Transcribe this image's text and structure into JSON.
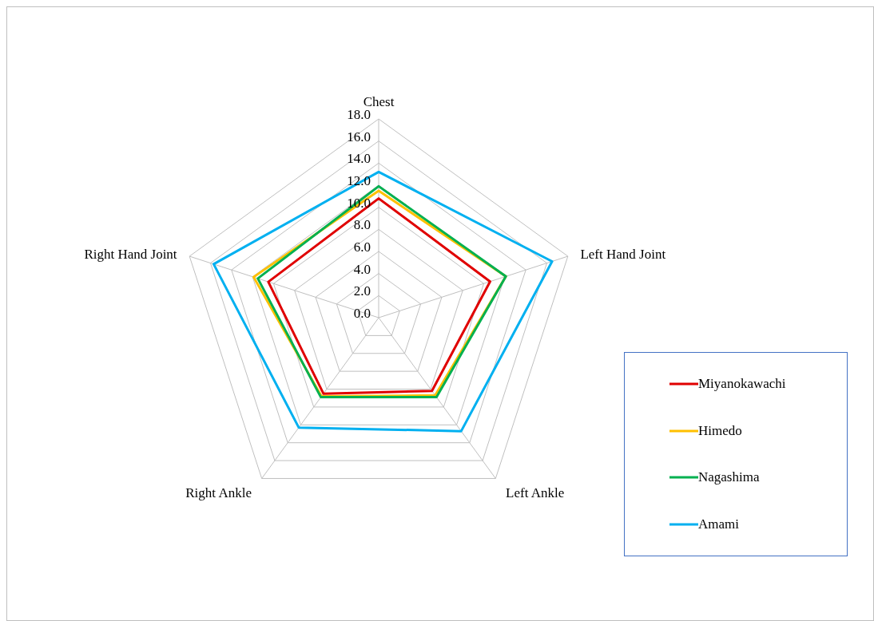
{
  "chart_data": {
    "type": "radar",
    "categories": [
      "Chest",
      "Left Hand Joint",
      "Left Ankle",
      "Right Ankle",
      "Right Hand Joint"
    ],
    "series": [
      {
        "name": "Miyanokawachi",
        "color": "#e00000",
        "values": [
          10.8,
          10.6,
          8.2,
          8.5,
          10.5
        ]
      },
      {
        "name": "Himedo",
        "color": "#ffc000",
        "values": [
          11.5,
          12.1,
          8.7,
          8.8,
          11.9
        ]
      },
      {
        "name": "Nagashima",
        "color": "#00b050",
        "values": [
          11.9,
          12.1,
          8.9,
          8.9,
          11.5
        ]
      },
      {
        "name": "Amami",
        "color": "#00b0f0",
        "values": [
          13.2,
          16.5,
          12.7,
          12.3,
          15.7
        ]
      }
    ],
    "ylim": [
      0,
      18
    ],
    "yticks": [
      {
        "value": 0,
        "label": "0.0"
      },
      {
        "value": 2,
        "label": "2.0"
      },
      {
        "value": 4,
        "label": "4.0"
      },
      {
        "value": 6,
        "label": "6.0"
      },
      {
        "value": 8,
        "label": "8.0"
      },
      {
        "value": 10,
        "label": "10.0"
      },
      {
        "value": 12,
        "label": "12.0"
      },
      {
        "value": 14,
        "label": "14.0"
      },
      {
        "value": 16,
        "label": "16.0"
      },
      {
        "value": 18,
        "label": "18.0"
      }
    ],
    "grid": true,
    "legend": "right",
    "marker": "none",
    "line_style": "solid"
  }
}
